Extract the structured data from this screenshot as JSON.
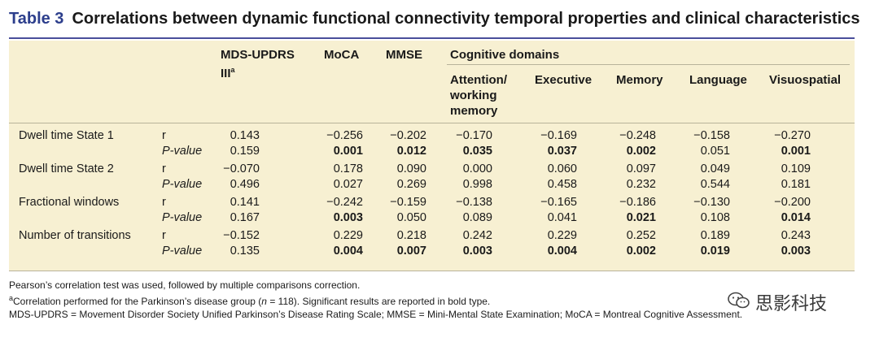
{
  "table_label": "Table 3",
  "title": "Correlations between dynamic functional connectivity temporal properties and clinical characteristics",
  "headers": {
    "mds": "MDS-UPDRS",
    "mds_line2": "III",
    "mds_sup": "a",
    "moca": "MoCA",
    "mmse": "MMSE",
    "cog_domains": "Cognitive domains",
    "attention_l1": "Attention/",
    "attention_l2": "working",
    "attention_l3": "memory",
    "executive": "Executive",
    "memory": "Memory",
    "language": "Language",
    "visuospatial": "Visuospatial"
  },
  "rows": [
    {
      "label": "Dwell time State 1",
      "r": [
        "0.143",
        "−0.256",
        "−0.202",
        "−0.170",
        "−0.169",
        "−0.248",
        "−0.158",
        "−0.270"
      ],
      "p": [
        "0.159",
        "0.001",
        "0.012",
        "0.035",
        "0.037",
        "0.002",
        "0.051",
        "0.001"
      ],
      "p_bold": [
        false,
        true,
        true,
        true,
        true,
        true,
        false,
        true
      ]
    },
    {
      "label": "Dwell time State 2",
      "r": [
        "−0.070",
        "0.178",
        "0.090",
        "0.000",
        "0.060",
        "0.097",
        "0.049",
        "0.109"
      ],
      "p": [
        "0.496",
        "0.027",
        "0.269",
        "0.998",
        "0.458",
        "0.232",
        "0.544",
        "0.181"
      ],
      "p_bold": [
        false,
        false,
        false,
        false,
        false,
        false,
        false,
        false
      ]
    },
    {
      "label": "Fractional windows",
      "r": [
        "0.141",
        "−0.242",
        "−0.159",
        "−0.138",
        "−0.165",
        "−0.186",
        "−0.130",
        "−0.200"
      ],
      "p": [
        "0.167",
        "0.003",
        "0.050",
        "0.089",
        "0.041",
        "0.021",
        "0.108",
        "0.014"
      ],
      "p_bold": [
        false,
        true,
        false,
        false,
        false,
        true,
        false,
        true
      ]
    },
    {
      "label": "Number of transitions",
      "r": [
        "−0.152",
        "0.229",
        "0.218",
        "0.242",
        "0.229",
        "0.252",
        "0.189",
        "0.243"
      ],
      "p": [
        "0.135",
        "0.004",
        "0.007",
        "0.003",
        "0.004",
        "0.002",
        "0.019",
        "0.003"
      ],
      "p_bold": [
        false,
        true,
        true,
        true,
        true,
        true,
        true,
        true
      ]
    }
  ],
  "stat_labels": {
    "r": "r",
    "p": "P-value"
  },
  "footnotes": {
    "line1": "Pearson’s correlation test was used, followed by multiple comparisons correction.",
    "line2_sup": "a",
    "line2_a": "Correlation performed for the Parkinson’s disease group (",
    "line2_n": "n",
    "line2_b": " = 118). Significant results are reported in bold type.",
    "line3": "MDS-UPDRS = Movement Disorder Society Unified Parkinson’s Disease Rating Scale; MMSE = Mini-Mental State Examination; MoCA = Montreal Cognitive Assessment."
  },
  "watermark": {
    "text": "思影科技",
    "icon": "wechat-icon"
  }
}
